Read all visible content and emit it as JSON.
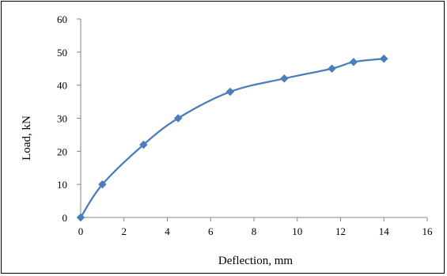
{
  "chart_data": {
    "type": "line",
    "title": "",
    "xlabel": "Deflection, mm",
    "ylabel": "Load, kN",
    "xlim": [
      0,
      16
    ],
    "ylim": [
      0,
      60
    ],
    "xticks": [
      "0",
      "2",
      "4",
      "6",
      "8",
      "10",
      "12",
      "14",
      "16"
    ],
    "yticks": [
      "0",
      "10",
      "20",
      "30",
      "40",
      "50",
      "60"
    ],
    "grid": false,
    "legend": "none",
    "smooth": true,
    "marker": "diamond",
    "colors": {
      "series": "#4a7ebb",
      "axis": "#868686"
    },
    "series": [
      {
        "x": [
          0,
          1,
          2.9,
          4.5,
          6.9,
          9.4,
          11.6,
          12.6,
          14
        ],
        "y": [
          0,
          10,
          22,
          30,
          38,
          42,
          45,
          47,
          48
        ]
      }
    ]
  }
}
